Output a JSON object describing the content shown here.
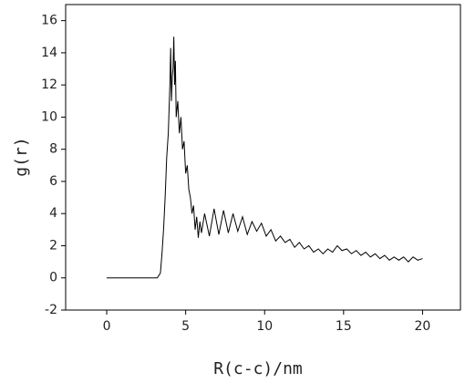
{
  "chart_data": {
    "type": "line",
    "x_label": "R(c-c)/nm",
    "y_label": "g(r)",
    "xlim": [
      -2.6,
      22.4
    ],
    "ylim": [
      -2,
      17
    ],
    "xticks": [
      0,
      5,
      10,
      15,
      20
    ],
    "yticks": [
      -2,
      0,
      2,
      4,
      6,
      8,
      10,
      12,
      14,
      16
    ],
    "series": [
      {
        "color": "#000000",
        "x": [
          0,
          3.2,
          3.4,
          3.5,
          3.6,
          3.7,
          3.8,
          3.9,
          4.0,
          4.05,
          4.1,
          4.15,
          4.2,
          4.25,
          4.3,
          4.35,
          4.4,
          4.5,
          4.6,
          4.7,
          4.8,
          4.9,
          5.0,
          5.1,
          5.2,
          5.3,
          5.4,
          5.5,
          5.6,
          5.7,
          5.8,
          5.9,
          6.0,
          6.2,
          6.5,
          6.8,
          7.1,
          7.4,
          7.7,
          8.0,
          8.3,
          8.6,
          8.9,
          9.2,
          9.5,
          9.8,
          10.1,
          10.4,
          10.7,
          11.0,
          11.3,
          11.6,
          11.9,
          12.2,
          12.5,
          12.8,
          13.1,
          13.4,
          13.7,
          14.0,
          14.3,
          14.6,
          14.9,
          15.2,
          15.5,
          15.8,
          16.1,
          16.4,
          16.7,
          17.0,
          17.3,
          17.6,
          17.9,
          18.2,
          18.5,
          18.8,
          19.1,
          19.4,
          19.7,
          20.0
        ],
        "values": [
          0,
          0,
          0.3,
          1.5,
          3,
          5,
          7.5,
          9,
          12,
          14.3,
          11,
          12.5,
          13,
          15,
          12,
          13.5,
          10,
          11,
          9,
          10,
          8,
          8.5,
          6.5,
          7,
          5.5,
          5,
          4,
          4.5,
          3,
          3.8,
          2.5,
          3.5,
          2.8,
          4.0,
          2.6,
          4.3,
          2.7,
          4.2,
          2.8,
          4.0,
          2.9,
          3.8,
          2.7,
          3.5,
          2.9,
          3.4,
          2.6,
          3.0,
          2.3,
          2.6,
          2.2,
          2.4,
          1.9,
          2.2,
          1.8,
          2.0,
          1.6,
          1.8,
          1.5,
          1.8,
          1.6,
          2.0,
          1.7,
          1.8,
          1.5,
          1.7,
          1.4,
          1.6,
          1.3,
          1.5,
          1.2,
          1.4,
          1.1,
          1.3,
          1.1,
          1.3,
          1.0,
          1.3,
          1.1,
          1.2
        ]
      }
    ]
  }
}
